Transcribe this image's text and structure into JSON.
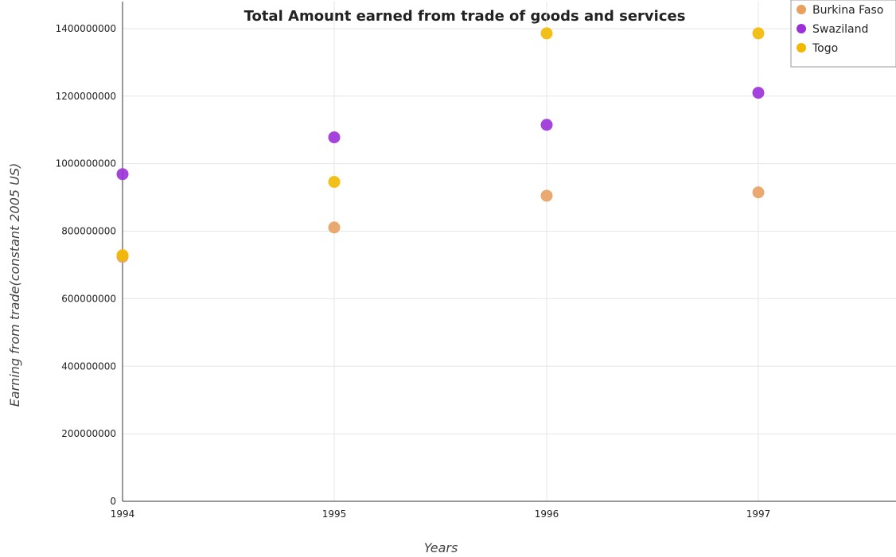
{
  "chart_data": {
    "type": "scatter",
    "title": "Total Amount earned from trade of goods and services",
    "xlabel": "Years",
    "ylabel": "Earning from trade(constant 2005 US)",
    "categories": [
      "1994",
      "1995",
      "1996",
      "1997"
    ],
    "ylim": [
      0,
      1480000000
    ],
    "yticks": [
      0,
      200000000,
      400000000,
      600000000,
      800000000,
      1000000000,
      1200000000,
      1400000000
    ],
    "ytick_labels": [
      "0",
      "200000000",
      "400000000",
      "600000000",
      "800000000",
      "1000000000",
      "1200000000",
      "1400000000"
    ],
    "grid": true,
    "legend_position": "top-right",
    "series": [
      {
        "name": "Burkina Faso",
        "color": "#e8a060",
        "values": [
          724000000,
          811000000,
          905000000,
          915000000
        ]
      },
      {
        "name": "Swaziland",
        "color": "#9b30d9",
        "values": [
          969000000,
          1078000000,
          1115000000,
          1210000000
        ]
      },
      {
        "name": "Togo",
        "color": "#f2b800",
        "values": [
          729000000,
          946000000,
          1386000000,
          1386000000
        ]
      }
    ]
  }
}
